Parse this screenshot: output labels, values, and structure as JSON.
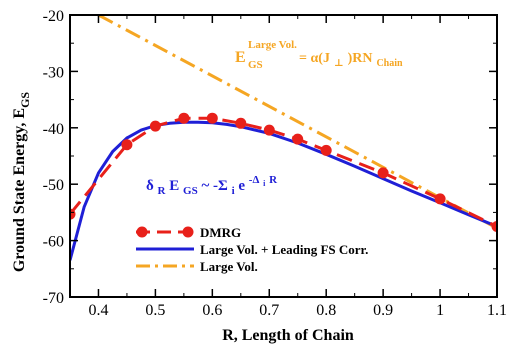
{
  "chart_data": {
    "type": "line",
    "xlabel": "R, Length of Chain",
    "ylabel": "Ground State Energy, E",
    "ylabel_sub": "GS",
    "xlim": [
      0.35,
      1.1
    ],
    "ylim": [
      -70,
      -20
    ],
    "xticks": [
      0.4,
      0.5,
      0.6,
      0.7,
      0.8,
      0.9,
      1.0,
      1.1
    ],
    "xtick_labels": [
      "0.4",
      "0.5",
      "0.6",
      "0.7",
      "0.8",
      "0.9",
      "1",
      "1.1"
    ],
    "yticks": [
      -70,
      -60,
      -50,
      -40,
      -30,
      -20
    ],
    "ytick_labels": [
      "-70",
      "-60",
      "-50",
      "-40",
      "-30",
      "-20"
    ],
    "grid": false,
    "legend_position": "lower-left",
    "series": [
      {
        "name": "DMRG",
        "color": "#e8201a",
        "style": "dashed-with-markers",
        "x": [
          0.35,
          0.45,
          0.5,
          0.55,
          0.6,
          0.65,
          0.7,
          0.75,
          0.8,
          0.9,
          1.0,
          1.1
        ],
        "y": [
          -55.3,
          -43.0,
          -39.7,
          -38.3,
          -38.3,
          -39.2,
          -40.4,
          -42.0,
          -44.0,
          -48.0,
          -52.6,
          -57.5
        ]
      },
      {
        "name": "Large Vol. + Leading FS Corr.",
        "color": "#1f1fd6",
        "style": "solid",
        "x": [
          0.35,
          0.375,
          0.4,
          0.425,
          0.45,
          0.475,
          0.5,
          0.525,
          0.55,
          0.575,
          0.6,
          0.625,
          0.65,
          0.7,
          0.75,
          0.8,
          0.85,
          0.9,
          0.95,
          1.0,
          1.05,
          1.1
        ],
        "y": [
          -63.5,
          -54.0,
          -48.0,
          -44.2,
          -41.8,
          -40.4,
          -39.6,
          -39.2,
          -39.0,
          -39.0,
          -39.1,
          -39.4,
          -39.8,
          -41.0,
          -42.7,
          -44.7,
          -46.8,
          -49.0,
          -51.2,
          -53.3,
          -55.4,
          -57.5
        ]
      },
      {
        "name": "Large Vol.",
        "color": "#f5a623",
        "style": "dash-dot",
        "x": [
          0.4,
          1.1
        ],
        "y": [
          -20.0,
          -57.8
        ]
      }
    ],
    "annotations": [
      {
        "name": "large-vol-formula",
        "color": "#f5a623",
        "main": "E",
        "sup": "Large Vol.",
        "sub": "GS",
        "rest": "= α(J",
        "rest_sub": "⊥",
        "rest2": ")RN",
        "rest2_sub": "Chain"
      },
      {
        "name": "finite-size-formula",
        "color": "#1f1fd6",
        "p1": "δ",
        "p1_sub": "R",
        "p2": "E",
        "p2_sub": "GS",
        "p3": " ~ -Σ",
        "p3_sub": "i",
        "p4": "e",
        "p4_sup": "-Δ",
        "p4_sup_sub": "i",
        "p4_sup_tail": "R"
      }
    ]
  }
}
